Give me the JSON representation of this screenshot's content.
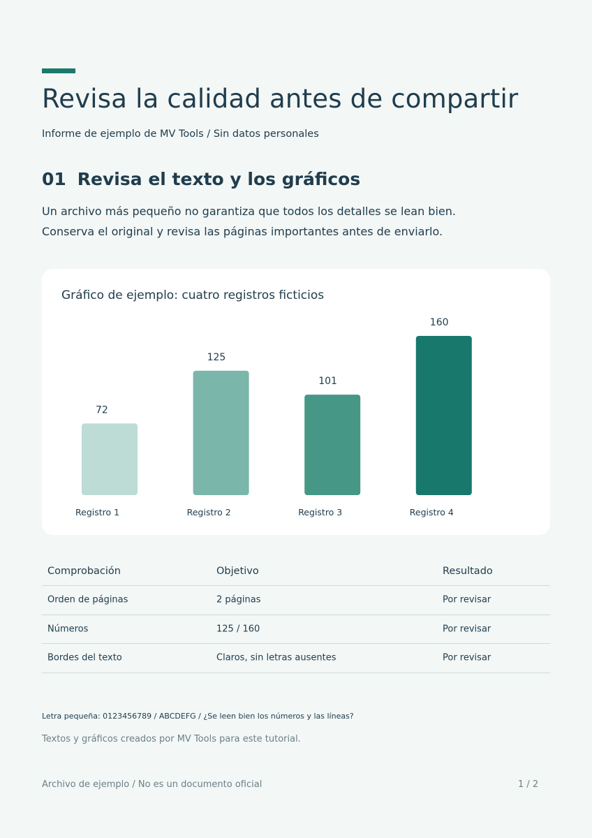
{
  "header": {
    "title": "Revisa la calidad antes de compartir",
    "subtitle": "Informe de ejemplo de MV Tools / Sin datos personales"
  },
  "section": {
    "number": "01",
    "heading": "Revisa el texto y los gráficos",
    "paragraph_lines": [
      "Un archivo más pequeño no garantiza que todos los detalles se lean bien.",
      "Conserva el original y revisa las páginas importantes antes de enviarlo."
    ]
  },
  "chart_data": {
    "type": "bar",
    "title": "Gráfico de ejemplo: cuatro registros ficticios",
    "categories": [
      "Registro 1",
      "Registro 2",
      "Registro 3",
      "Registro 4"
    ],
    "values": [
      72,
      125,
      101,
      160
    ],
    "data_labels": [
      "72",
      "125",
      "101",
      "160"
    ],
    "bar_colors": [
      "#bcdcd5",
      "#7bb6ab",
      "#469786",
      "#18786b"
    ],
    "xlabel": "",
    "ylabel": "",
    "ylim": [
      0,
      160
    ],
    "grid": false
  },
  "table": {
    "headers": [
      "Comprobación",
      "Objetivo",
      "Resultado"
    ],
    "rows": [
      [
        "Orden de páginas",
        "2 páginas",
        "Por revisar"
      ],
      [
        "Números",
        "125 / 160",
        "Por revisar"
      ],
      [
        "Bordes del texto",
        "Claros, sin letras ausentes",
        "Por revisar"
      ]
    ]
  },
  "small_text": "Letra pequeña: 0123456789 / ABCDEFG / ¿Se leen bien los números y las líneas?",
  "credit": "Textos y gráficos creados por MV Tools para este tutorial.",
  "footer": {
    "left": "Archivo de ejemplo / No es un documento oficial",
    "page": "1 / 2"
  },
  "colors": {
    "accent": "#1b7a6c",
    "background": "#f3f7f6",
    "text": "#203d4d",
    "muted": "#6b8088"
  }
}
